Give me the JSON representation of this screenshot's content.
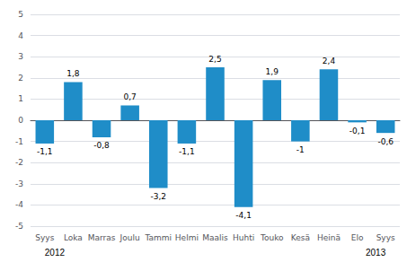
{
  "chart_data": {
    "type": "bar",
    "categories": [
      "Syys",
      "Loka",
      "Marras",
      "Joulu",
      "Tammi",
      "Helmi",
      "Maalis",
      "Huhti",
      "Touko",
      "Kesä",
      "Heinä",
      "Elo",
      "Syys"
    ],
    "values": [
      -1.1,
      1.8,
      -0.8,
      0.7,
      -3.2,
      -1.1,
      2.5,
      -4.1,
      1.9,
      -1.0,
      2.4,
      -0.1,
      -0.6
    ],
    "value_labels": [
      "-1,1",
      "1,8",
      "-0,8",
      "0,7",
      "-3,2",
      "-1,1",
      "2,5",
      "-4,1",
      "1,9",
      "-1",
      "2,4",
      "-0,1",
      "-0,6"
    ],
    "data_labels": true,
    "color": "#1f8dc8",
    "ylim": [
      -5,
      5
    ],
    "yticks": [
      -5,
      -4,
      -3,
      -2,
      -1,
      0,
      1,
      2,
      3,
      4,
      5
    ],
    "grid": true,
    "annotations": [
      "2012",
      "2013"
    ]
  }
}
